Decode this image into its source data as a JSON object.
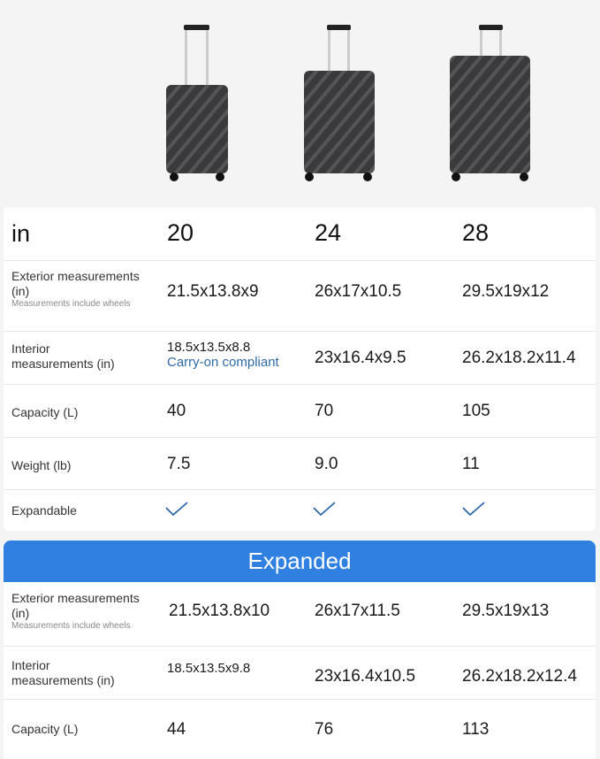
{
  "colors": {
    "accent": "#2f80e0",
    "link": "#2e6aa8"
  },
  "header": {
    "unit": "in",
    "sizes": [
      "20",
      "24",
      "28"
    ]
  },
  "rows": [
    {
      "label": "Exterior measurements (in)",
      "note": "Measurements include wheels",
      "values": [
        "21.5x13.8x9",
        "26x17x10.5",
        "29.5x19x12"
      ]
    },
    {
      "label": "Interior measurements (in)",
      "values": [
        "18.5x13.5x8.8",
        "23x16.4x9.5",
        "26.2x18.2x11.4"
      ],
      "note_20": "Carry-on compliant"
    },
    {
      "label": "Capacity (L)",
      "values": [
        "40",
        "70",
        "105"
      ]
    },
    {
      "label": "Weight (lb)",
      "values": [
        "7.5",
        "9.0",
        "11"
      ]
    },
    {
      "label": "Expandable",
      "values": [
        "check-icon",
        "check-icon",
        "check-icon"
      ]
    }
  ],
  "expanded": {
    "title": "Expanded",
    "rows": [
      {
        "label": "Exterior measurements (in)",
        "note": "Measurements include wheels",
        "values": [
          "21.5x13.8x10",
          "26x17x11.5",
          "29.5x19x13"
        ]
      },
      {
        "label": "Interior measurements (in)",
        "values": [
          "18.5x13.5x9.8",
          "23x16.4x10.5",
          "26.2x18.2x12.4"
        ]
      },
      {
        "label": "Capacity (L)",
        "values": [
          "44",
          "76",
          "113"
        ]
      }
    ]
  }
}
